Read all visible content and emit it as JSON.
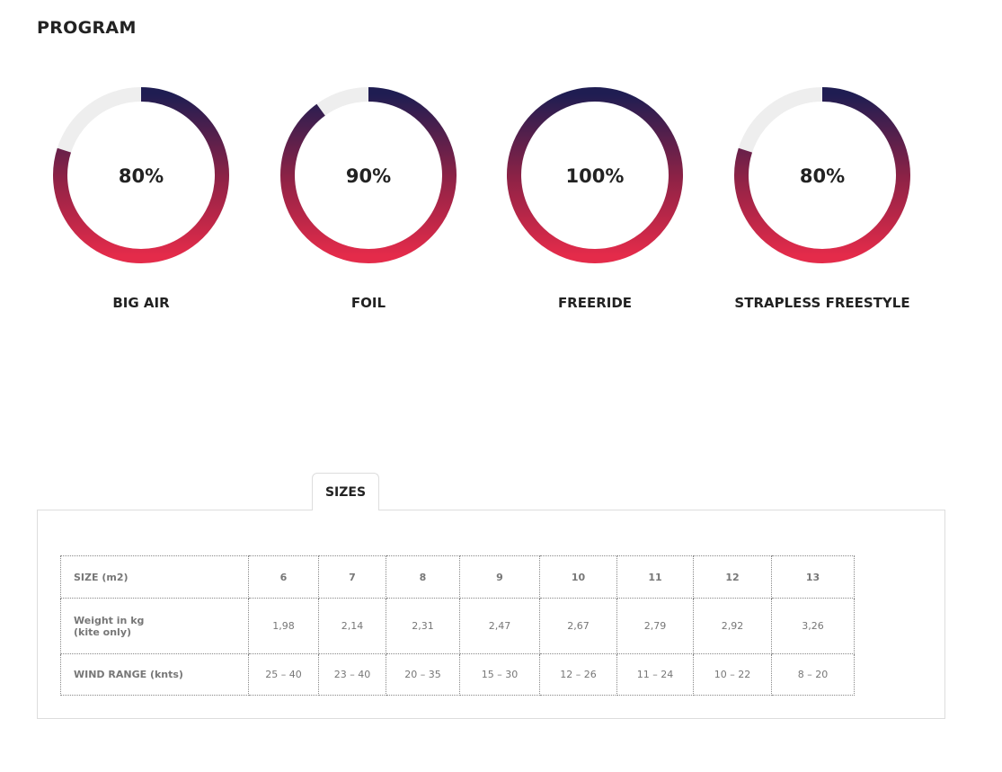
{
  "program": {
    "title": "PROGRAM",
    "items": [
      {
        "label": "BIG AIR",
        "value": 80,
        "value_label": "80%"
      },
      {
        "label": "FOIL",
        "value": 90,
        "value_label": "90%"
      },
      {
        "label": "FREERIDE",
        "value": 100,
        "value_label": "100%"
      },
      {
        "label": "STRAPLESS FREESTYLE",
        "value": 80,
        "value_label": "80%"
      }
    ]
  },
  "sizes": {
    "tab": "SIZES",
    "table": {
      "rows": [
        [
          "SIZE (m2)",
          "6",
          "7",
          "8",
          "9",
          "10",
          "11",
          "12",
          "13"
        ],
        [
          "Weight in kg\n(kite only)",
          "1,98",
          "2,14",
          "2,31",
          "2,47",
          "2,67",
          "2,79",
          "2,92",
          "3,26"
        ],
        [
          "WIND RANGE (knts)",
          "25 – 40",
          "23 – 40",
          "20 – 35",
          "15 – 30",
          "12 – 26",
          "11 – 24",
          "10 –  22",
          "8 – 20"
        ]
      ]
    }
  }
}
